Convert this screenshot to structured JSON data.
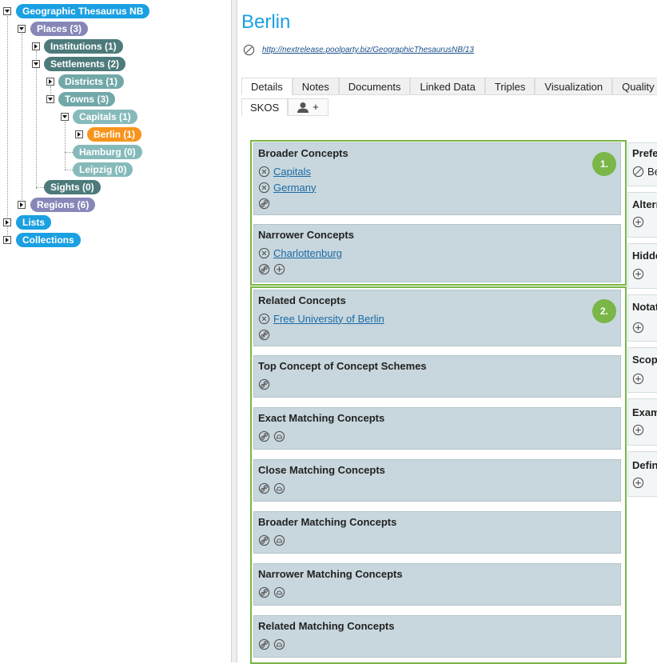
{
  "tree": {
    "nodes": [
      "Geographic Thesaurus NB",
      "Places (3)",
      "Institutions (1)",
      "Settlements (2)",
      "Districts (1)",
      "Towns (3)",
      "Capitals (1)",
      "Berlin (1)",
      "Hamburg (0)",
      "Leipzig (0)",
      "Sights (0)",
      "Regions (6)",
      "Lists",
      "Collections"
    ]
  },
  "concept": {
    "title": "Berlin",
    "uri": "http://nextrelease.poolparty.biz/GeographicThesaurusNB/13"
  },
  "tabs": {
    "primary": [
      "Details",
      "Notes",
      "Documents",
      "Linked Data",
      "Triples",
      "Visualization",
      "Quality M"
    ],
    "secondary": [
      "SKOS",
      "+"
    ]
  },
  "groups": [
    {
      "badge": "1.",
      "panels": [
        {
          "title": "Broader Concepts",
          "links": [
            "Capitals",
            "Germany"
          ]
        },
        {
          "title": "Narrower Concepts",
          "links": [
            "Charlottenburg"
          ]
        }
      ]
    },
    {
      "badge": "2.",
      "panels": [
        {
          "title": "Related Concepts",
          "links": [
            "Free University of Berlin"
          ]
        },
        {
          "title": "Top Concept of Concept Schemes"
        },
        {
          "title": "Exact Matching Concepts"
        },
        {
          "title": "Close Matching Concepts"
        },
        {
          "title": "Broader Matching Concepts"
        },
        {
          "title": "Narrower Matching Concepts"
        },
        {
          "title": "Related Matching Concepts"
        }
      ]
    }
  ],
  "side_panels": [
    {
      "title": "Prefe",
      "values": [
        "Be"
      ]
    },
    {
      "title": "Altern"
    },
    {
      "title": "Hidde"
    },
    {
      "title": "Notat"
    },
    {
      "title": "Scop"
    },
    {
      "title": "Exam"
    },
    {
      "title": "Defin"
    }
  ]
}
